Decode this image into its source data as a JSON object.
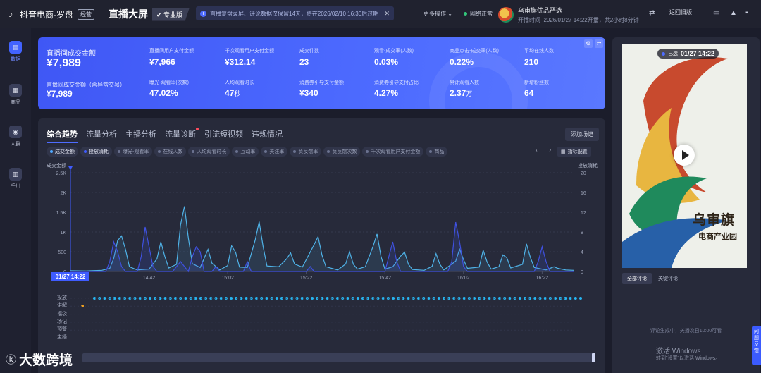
{
  "topbar": {
    "brand": "抖音电商·罗盘",
    "brand_badge": "经营",
    "page_title": "直播大屏",
    "edition": "专业版",
    "notice": "直播复盘录屏、评论数据仅保留14天，将在2026/02/10 16:30后过期",
    "more_ops": "更多操作",
    "net_status": "网络正常",
    "shop_name": "乌审旗优品严选",
    "live_time_label": "开播时间",
    "live_time": "2026/01/27 14:22开播，共2小时8分钟",
    "back_label": "返回旧版"
  },
  "sidebar": [
    {
      "label": "数据",
      "icon": "chart-icon",
      "active": true
    },
    {
      "label": "商品",
      "icon": "cart-icon",
      "active": false
    },
    {
      "label": "人群",
      "icon": "people-icon",
      "active": false
    },
    {
      "label": "千川",
      "icon": "ads-icon",
      "active": false
    }
  ],
  "metrics": {
    "main": {
      "label": "直播间成交金额",
      "value": "¥7,989"
    },
    "main_sub": {
      "label": "直播间成交金额（含异常交易）",
      "value": "¥7,989"
    },
    "items": [
      {
        "label": "直播间用户支付金额",
        "value": "¥7,966"
      },
      {
        "label": "千次观看用户支付金额",
        "value": "¥312.14"
      },
      {
        "label": "成交件数",
        "value": "23"
      },
      {
        "label": "观看-成交率(人数)",
        "value": "0.03%"
      },
      {
        "label": "商品点击-成交率(人数)",
        "value": "0.22%"
      },
      {
        "label": "平均在线人数",
        "value": "210"
      },
      {
        "label": "曝光-观看率(次数)",
        "value": "47.02%"
      },
      {
        "label": "人均观看时长",
        "value": "47",
        "unit": "秒"
      },
      {
        "label": "消费券引导支付金额",
        "value": "¥340"
      },
      {
        "label": "消费券引导支付占比",
        "value": "4.27%"
      },
      {
        "label": "累计观看人数",
        "value": "2.37",
        "unit": "万"
      },
      {
        "label": "新增粉丝数",
        "value": "64"
      }
    ]
  },
  "trend": {
    "tabs": [
      "综合趋势",
      "流量分析",
      "主播分析",
      "流量诊断",
      "引流短视频",
      "违规情况"
    ],
    "add_record": "添加场记",
    "chips": [
      "成交金额",
      "投放消耗",
      "曝光-观看率",
      "在线人数",
      "人均观看时长",
      "互动率",
      "关注率",
      "负反馈率",
      "负反馈次数",
      "千次观看用户支付金额",
      "商品"
    ],
    "indicator_config": "指标配置",
    "event_labels": [
      "投放",
      "讲解",
      "福袋",
      "场记",
      "预警",
      "主播"
    ],
    "cursor_label": "01/27 14:22"
  },
  "chart_data": {
    "type": "line",
    "x_ticks": [
      "14:42",
      "15:02",
      "15:22",
      "15:42",
      "16:02",
      "16:22"
    ],
    "y_left": {
      "label": "成交金额",
      "ticks": [
        "0",
        "500",
        "1K",
        "1.5K",
        "2K",
        "2.5K"
      ],
      "ylim": [
        0,
        2500
      ]
    },
    "y_right": {
      "label": "投放消耗",
      "ticks": [
        "0",
        "4",
        "8",
        "12",
        "16",
        "20"
      ],
      "ylim": [
        0,
        20
      ]
    },
    "x_range_minutes": [
      0,
      128
    ],
    "series": [
      {
        "name": "成交金额",
        "axis": "left",
        "color": "#4fb3e8",
        "points": [
          [
            0,
            20
          ],
          [
            4,
            15
          ],
          [
            8,
            30
          ],
          [
            10,
            80
          ],
          [
            11,
            330
          ],
          [
            12,
            780
          ],
          [
            13,
            900
          ],
          [
            14,
            560
          ],
          [
            15,
            120
          ],
          [
            17,
            40
          ],
          [
            20,
            60
          ],
          [
            22,
            320
          ],
          [
            23,
            750
          ],
          [
            24,
            380
          ],
          [
            25,
            90
          ],
          [
            27,
            180
          ],
          [
            28,
            1180
          ],
          [
            29,
            1650
          ],
          [
            30,
            850
          ],
          [
            31,
            200
          ],
          [
            33,
            100
          ],
          [
            35,
            560
          ],
          [
            36,
            210
          ],
          [
            38,
            40
          ],
          [
            40,
            150
          ],
          [
            41,
            650
          ],
          [
            42,
            490
          ],
          [
            43,
            110
          ],
          [
            45,
            100
          ],
          [
            47,
            800
          ],
          [
            48,
            1260
          ],
          [
            49,
            640
          ],
          [
            50,
            140
          ],
          [
            53,
            120
          ],
          [
            55,
            320
          ],
          [
            56,
            470
          ],
          [
            57,
            190
          ],
          [
            59,
            110
          ],
          [
            62,
            680
          ],
          [
            63,
            880
          ],
          [
            64,
            410
          ],
          [
            65,
            120
          ],
          [
            68,
            40
          ],
          [
            70,
            190
          ],
          [
            71,
            500
          ],
          [
            72,
            180
          ],
          [
            73,
            60
          ],
          [
            75,
            120
          ],
          [
            77,
            640
          ],
          [
            78,
            950
          ],
          [
            79,
            380
          ],
          [
            80,
            60
          ],
          [
            82,
            120
          ],
          [
            84,
            390
          ],
          [
            85,
            490
          ],
          [
            86,
            180
          ],
          [
            87,
            50
          ],
          [
            90,
            30
          ],
          [
            92,
            130
          ],
          [
            93,
            450
          ],
          [
            94,
            180
          ],
          [
            95,
            40
          ],
          [
            98,
            260
          ],
          [
            99,
            560
          ],
          [
            100,
            300
          ],
          [
            101,
            80
          ],
          [
            104,
            110
          ],
          [
            105,
            540
          ],
          [
            106,
            240
          ],
          [
            107,
            60
          ],
          [
            109,
            120
          ],
          [
            110,
            420
          ],
          [
            111,
            350
          ],
          [
            112,
            90
          ],
          [
            115,
            180
          ],
          [
            116,
            700
          ],
          [
            117,
            360
          ],
          [
            118,
            100
          ],
          [
            121,
            40
          ],
          [
            123,
            120
          ],
          [
            124,
            80
          ],
          [
            126,
            40
          ],
          [
            128,
            30
          ]
        ]
      },
      {
        "name": "投放消耗",
        "axis": "right",
        "color": "#3f51e0",
        "points": [
          [
            0,
            0
          ],
          [
            9,
            0
          ],
          [
            10,
            2
          ],
          [
            11,
            6
          ],
          [
            12,
            4
          ],
          [
            13,
            1
          ],
          [
            14,
            0
          ],
          [
            17,
            0
          ],
          [
            18,
            3
          ],
          [
            19,
            9
          ],
          [
            20,
            5
          ],
          [
            21,
            1
          ],
          [
            22,
            0
          ],
          [
            26,
            0
          ],
          [
            27,
            1
          ],
          [
            28,
            2
          ],
          [
            29,
            1
          ],
          [
            30,
            0
          ],
          [
            31,
            3
          ],
          [
            32,
            5
          ],
          [
            33,
            4
          ],
          [
            34,
            0
          ],
          [
            36,
            0
          ],
          [
            37,
            1
          ],
          [
            38,
            0
          ],
          [
            44,
            0
          ],
          [
            45,
            2
          ],
          [
            46,
            0
          ],
          [
            60,
            0
          ],
          [
            61,
            1
          ],
          [
            62,
            0
          ],
          [
            80,
            0
          ],
          [
            81,
            3
          ],
          [
            82,
            6
          ],
          [
            83,
            2
          ],
          [
            84,
            0
          ],
          [
            96,
            0
          ],
          [
            97,
            2
          ],
          [
            98,
            10
          ],
          [
            99,
            6
          ],
          [
            100,
            1
          ],
          [
            101,
            0
          ],
          [
            118,
            0
          ],
          [
            119,
            2
          ],
          [
            120,
            5
          ],
          [
            121,
            2
          ],
          [
            122,
            0
          ],
          [
            128,
            0
          ]
        ]
      }
    ],
    "events": {
      "投放_count": 97,
      "讲解_marker": "dot"
    }
  },
  "right": {
    "live_badge": "已选",
    "live_time": "01/27 14:22",
    "video_brand": "乌审旗",
    "video_brand_sub": "电商产业园",
    "comment_tabs": [
      "全部评论",
      "关键评论"
    ],
    "comment_note": "评论生成中，关播次日10:00可看",
    "windows_activate": "激活 Windows",
    "windows_sub": "转到\"设置\"以激活 Windows。",
    "feedback": "问题反馈"
  },
  "watermark": "大数跨境"
}
